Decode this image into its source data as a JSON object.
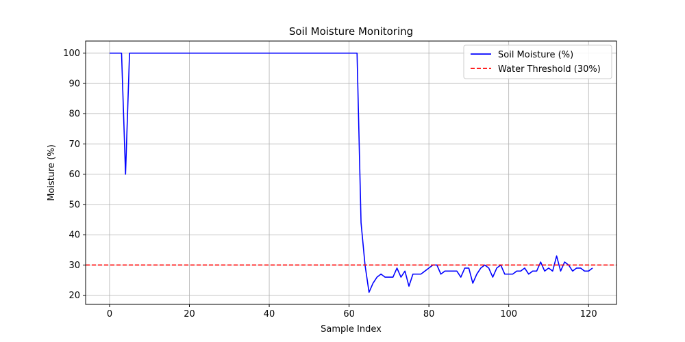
{
  "chart_data": {
    "type": "line",
    "title": "Soil Moisture Monitoring",
    "xlabel": "Sample Index",
    "ylabel": "Moisture (%)",
    "xlim": [
      -6,
      127
    ],
    "ylim": [
      17,
      104
    ],
    "xticks": [
      0,
      20,
      40,
      60,
      80,
      100,
      120
    ],
    "yticks": [
      20,
      30,
      40,
      50,
      60,
      70,
      80,
      90,
      100
    ],
    "grid": true,
    "legend_position": "top-right",
    "series": [
      {
        "name": "Soil Moisture (%)",
        "color": "#0000ff",
        "style": "solid",
        "x": [
          0,
          1,
          2,
          3,
          4,
          5,
          6,
          7,
          8,
          9,
          10,
          11,
          12,
          13,
          14,
          15,
          16,
          17,
          18,
          19,
          20,
          21,
          22,
          23,
          24,
          25,
          26,
          27,
          28,
          29,
          30,
          31,
          32,
          33,
          34,
          35,
          36,
          37,
          38,
          39,
          40,
          41,
          42,
          43,
          44,
          45,
          46,
          47,
          48,
          49,
          50,
          51,
          52,
          53,
          54,
          55,
          56,
          57,
          58,
          59,
          60,
          61,
          62,
          63,
          64,
          65,
          66,
          67,
          68,
          69,
          70,
          71,
          72,
          73,
          74,
          75,
          76,
          77,
          78,
          79,
          80,
          81,
          82,
          83,
          84,
          85,
          86,
          87,
          88,
          89,
          90,
          91,
          92,
          93,
          94,
          95,
          96,
          97,
          98,
          99,
          100,
          101,
          102,
          103,
          104,
          105,
          106,
          107,
          108,
          109,
          110,
          111,
          112,
          113,
          114,
          115,
          116,
          117,
          118,
          119,
          120,
          121
        ],
        "y": [
          100,
          100,
          100,
          100,
          60,
          100,
          100,
          100,
          100,
          100,
          100,
          100,
          100,
          100,
          100,
          100,
          100,
          100,
          100,
          100,
          100,
          100,
          100,
          100,
          100,
          100,
          100,
          100,
          100,
          100,
          100,
          100,
          100,
          100,
          100,
          100,
          100,
          100,
          100,
          100,
          100,
          100,
          100,
          100,
          100,
          100,
          100,
          100,
          100,
          100,
          100,
          100,
          100,
          100,
          100,
          100,
          100,
          100,
          100,
          100,
          100,
          100,
          100,
          44,
          30,
          21,
          24,
          26,
          27,
          26,
          26,
          26,
          29,
          26,
          28,
          23,
          27,
          27,
          27,
          28,
          29,
          30,
          30,
          27,
          28,
          28,
          28,
          28,
          26,
          29,
          29,
          24,
          27,
          29,
          30,
          29,
          26,
          29,
          30,
          27,
          27,
          27,
          28,
          28,
          29,
          27,
          28,
          28,
          31,
          28,
          29,
          28,
          33,
          28,
          31,
          30,
          28,
          29,
          29,
          28,
          28,
          29
        ]
      },
      {
        "name": "Water Threshold (30%)",
        "color": "#ff0000",
        "style": "dashed",
        "hline": 30
      }
    ]
  }
}
